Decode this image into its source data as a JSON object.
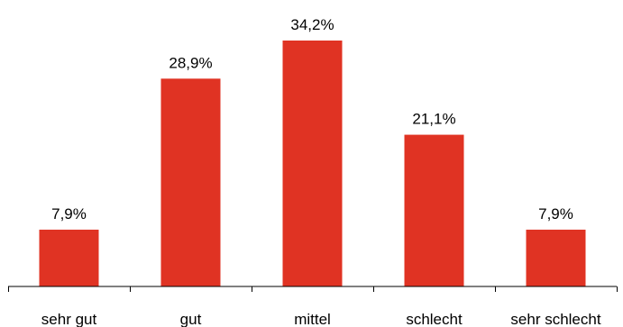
{
  "chart_data": {
    "type": "bar",
    "categories": [
      "sehr gut",
      "gut",
      "mittel",
      "schlecht",
      "sehr schlecht"
    ],
    "values": [
      7.9,
      28.9,
      34.2,
      21.1,
      7.9
    ],
    "data_labels": [
      "7,9%",
      "28,9%",
      "34,2%",
      "21,1%",
      "7,9%"
    ],
    "title": "",
    "xlabel": "",
    "ylabel": "",
    "ylim": [
      0,
      34.2
    ],
    "grid": false,
    "legend": "none",
    "bar_color": "#e03323",
    "axis_color": "#000000"
  }
}
